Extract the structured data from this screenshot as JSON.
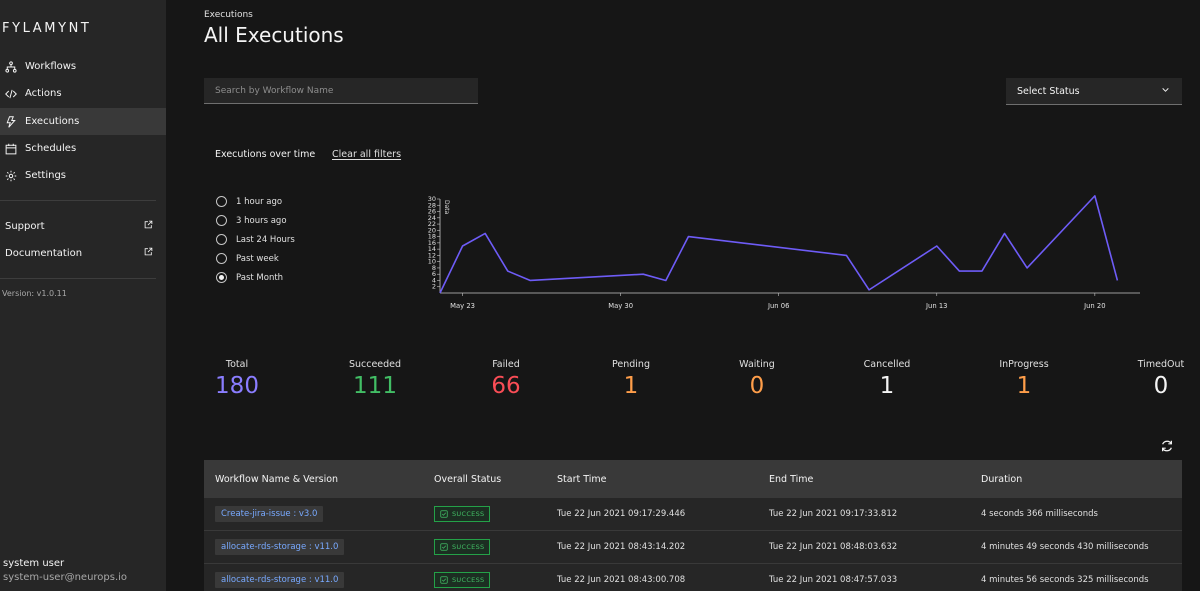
{
  "app": {
    "logo": "FYLAMYNT",
    "version": "Version: v1.0.11"
  },
  "sidebar": {
    "items": [
      {
        "label": "Workflows",
        "icon": "workflow-icon"
      },
      {
        "label": "Actions",
        "icon": "code-icon"
      },
      {
        "label": "Executions",
        "icon": "execution-icon"
      },
      {
        "label": "Schedules",
        "icon": "calendar-icon"
      },
      {
        "label": "Settings",
        "icon": "gear-icon"
      }
    ],
    "links": [
      {
        "label": "Support",
        "icon": "external-link-icon"
      },
      {
        "label": "Documentation",
        "icon": "external-link-icon"
      }
    ]
  },
  "user": {
    "name": "system user",
    "email": "system-user@neurops.io"
  },
  "header": {
    "breadcrumb": "Executions",
    "title": "All Executions"
  },
  "filters": {
    "search_placeholder": "Search by Workflow Name",
    "status_select": "Select Status",
    "chart_title": "Executions over time",
    "clear_filters": "Clear all filters",
    "time_ranges": [
      {
        "label": "1 hour ago",
        "checked": false
      },
      {
        "label": "3 hours ago",
        "checked": false
      },
      {
        "label": "Last 24 Hours",
        "checked": false
      },
      {
        "label": "Past week",
        "checked": false
      },
      {
        "label": "Past Month",
        "checked": true
      }
    ]
  },
  "chart_data": {
    "type": "line",
    "ylabel": "Data",
    "ylim": [
      0,
      30
    ],
    "yticks": [
      2,
      4,
      6,
      8,
      10,
      12,
      14,
      16,
      18,
      20,
      22,
      24,
      26,
      28,
      30
    ],
    "xticks": [
      "May 23",
      "May 30",
      "Jun 06",
      "Jun 13",
      "Jun 20"
    ],
    "color": "#6e5cf7",
    "x": [
      "2021-05-22",
      "2021-05-23",
      "2021-05-24",
      "2021-05-25",
      "2021-05-26",
      "2021-05-31",
      "2021-06-01",
      "2021-06-02",
      "2021-06-09",
      "2021-06-10",
      "2021-06-13",
      "2021-06-14",
      "2021-06-15",
      "2021-06-16",
      "2021-06-17",
      "2021-06-20",
      "2021-06-21"
    ],
    "values": [
      0,
      15,
      19,
      7,
      4,
      6,
      4,
      18,
      12,
      1,
      15,
      7,
      7,
      19,
      8,
      31,
      4
    ]
  },
  "stats": [
    {
      "label": "Total",
      "value": "180",
      "color": "#8a7dff"
    },
    {
      "label": "Succeeded",
      "value": "111",
      "color": "#42be65"
    },
    {
      "label": "Failed",
      "value": "66",
      "color": "#fa4d56"
    },
    {
      "label": "Pending",
      "value": "1",
      "color": "#ff9e4a"
    },
    {
      "label": "Waiting",
      "value": "0",
      "color": "#ff9e4a"
    },
    {
      "label": "Cancelled",
      "value": "1",
      "color": "#f4f4f4"
    },
    {
      "label": "InProgress",
      "value": "1",
      "color": "#ff9e4a"
    },
    {
      "label": "TimedOut",
      "value": "0",
      "color": "#f4f4f4"
    }
  ],
  "table": {
    "headers": [
      "Workflow Name & Version",
      "Overall Status",
      "Start Time",
      "End Time",
      "Duration"
    ],
    "rows": [
      {
        "workflow": "Create-jira-issue : v3.0",
        "status": "SUCCESS",
        "start": "Tue 22 Jun 2021 09:17:29.446",
        "end": "Tue 22 Jun 2021 09:17:33.812",
        "duration": "4 seconds 366 milliseconds"
      },
      {
        "workflow": "allocate-rds-storage : v11.0",
        "status": "SUCCESS",
        "start": "Tue 22 Jun 2021 08:43:14.202",
        "end": "Tue 22 Jun 2021 08:48:03.632",
        "duration": "4 minutes 49 seconds 430 milliseconds"
      },
      {
        "workflow": "allocate-rds-storage : v11.0",
        "status": "SUCCESS",
        "start": "Tue 22 Jun 2021 08:43:00.708",
        "end": "Tue 22 Jun 2021 08:47:57.033",
        "duration": "4 minutes 56 seconds 325 milliseconds"
      }
    ]
  }
}
